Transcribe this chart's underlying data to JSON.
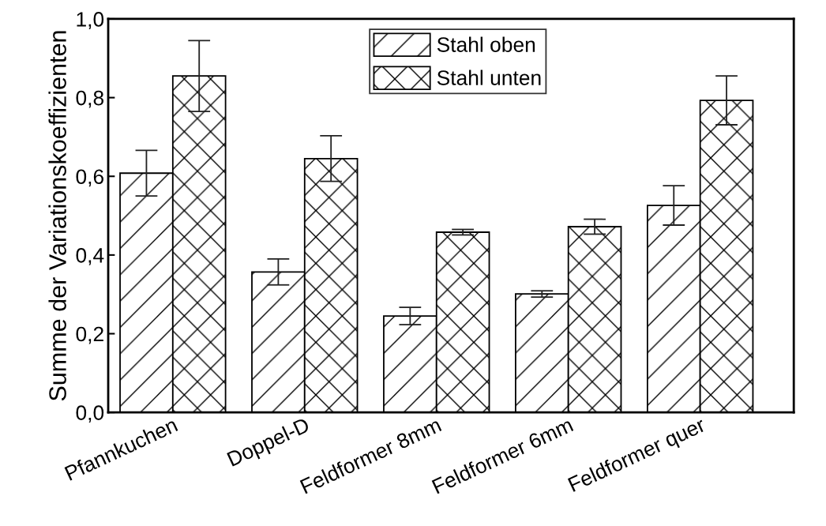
{
  "chart_data": {
    "type": "bar",
    "ylabel": "Summe der Variationskoeffizienten",
    "categories": [
      "Pfannkuchen",
      "Doppel-D",
      "Feldformer 8mm",
      "Feldformer 6mm",
      "Feldformer quer"
    ],
    "series": [
      {
        "name": "Stahl oben",
        "color": "#000000",
        "values": [
          0.608,
          0.357,
          0.245,
          0.301,
          0.526
        ],
        "errors": [
          0.058,
          0.033,
          0.022,
          0.008,
          0.05
        ]
      },
      {
        "name": "Stahl unten",
        "color": "#000000",
        "values": [
          0.855,
          0.645,
          0.458,
          0.472,
          0.793
        ],
        "errors": [
          0.09,
          0.058,
          0.007,
          0.019,
          0.062
        ]
      }
    ],
    "ylim": [
      0,
      1.0
    ],
    "yticks": [
      {
        "value": 0,
        "label": "0,0"
      },
      {
        "value": 0.2,
        "label": "0,2"
      },
      {
        "value": 0.4,
        "label": "0,4"
      },
      {
        "value": 0.6,
        "label": "0,6"
      },
      {
        "value": 0.8,
        "label": "0,8"
      },
      {
        "value": 1.0,
        "label": "1,0"
      }
    ],
    "grid": false,
    "legend": "top"
  }
}
